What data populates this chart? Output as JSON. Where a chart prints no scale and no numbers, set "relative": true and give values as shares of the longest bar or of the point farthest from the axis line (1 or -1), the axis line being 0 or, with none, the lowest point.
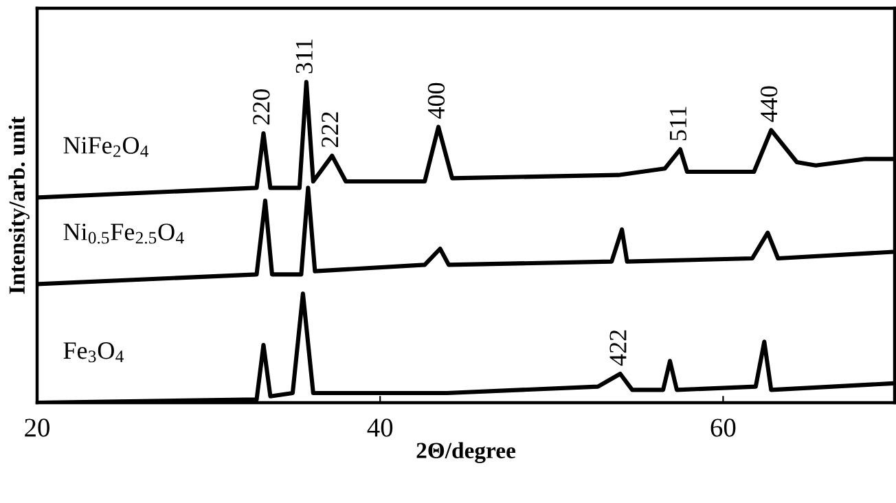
{
  "chart_data": {
    "type": "line",
    "relative": true,
    "xlabel": "2Θ/degree",
    "ylabel": "Intensity/arb. unit",
    "xlim": [
      20,
      70
    ],
    "xticks": [
      20,
      40,
      60
    ],
    "grid": false,
    "legend": false,
    "marker": "none",
    "line_style": "solid",
    "tick_labels": "x",
    "series": [
      {
        "name": "NiFe$_{2}$O$_{4}$",
        "color": "#000000",
        "x": [
          20.1,
          32.8,
          33.2,
          33.6,
          35.3,
          35.7,
          36.1,
          37.2,
          38.0,
          42.6,
          43.4,
          44.2,
          53.9,
          56.6,
          57.5,
          57.9,
          61.8,
          62.8,
          64.3,
          65.4,
          68.3,
          69.8
        ],
        "values": [
          0.64,
          0.67,
          0.84,
          0.67,
          0.67,
          1.0,
          0.69,
          0.77,
          0.69,
          0.69,
          0.86,
          0.7,
          0.71,
          0.73,
          0.79,
          0.72,
          0.72,
          0.85,
          0.75,
          0.74,
          0.76,
          0.76
        ]
      },
      {
        "name": "Ni$_{0.5}$Fe$_{2.5}$O$_{4}$",
        "color": "#000000",
        "x": [
          20.1,
          32.8,
          33.3,
          33.7,
          35.4,
          35.8,
          36.2,
          42.6,
          43.5,
          44.0,
          53.5,
          54.1,
          54.4,
          61.7,
          62.6,
          63.2,
          69.8
        ],
        "values": [
          0.37,
          0.4,
          0.63,
          0.4,
          0.4,
          0.67,
          0.41,
          0.43,
          0.48,
          0.43,
          0.44,
          0.54,
          0.44,
          0.45,
          0.53,
          0.45,
          0.47
        ]
      },
      {
        "name": "Fe$_{3}$O$_{4}$",
        "color": "#000000",
        "x": [
          20.1,
          32.8,
          33.2,
          33.6,
          34.9,
          35.5,
          36.1,
          43.9,
          52.7,
          54.0,
          54.7,
          56.5,
          56.9,
          57.3,
          61.9,
          62.4,
          62.8,
          69.8
        ],
        "values": [
          0.0,
          0.01,
          0.18,
          0.02,
          0.03,
          0.34,
          0.03,
          0.03,
          0.05,
          0.09,
          0.04,
          0.04,
          0.13,
          0.04,
          0.05,
          0.19,
          0.04,
          0.06
        ]
      }
    ],
    "annotations": [
      {
        "text": "220",
        "x": 33.2,
        "y": 0.84
      },
      {
        "text": "311",
        "x": 35.7,
        "y": 1.0
      },
      {
        "text": "222",
        "x": 37.2,
        "y": 0.77
      },
      {
        "text": "400",
        "x": 43.4,
        "y": 0.86
      },
      {
        "text": "511",
        "x": 57.5,
        "y": 0.79
      },
      {
        "text": "440",
        "x": 62.8,
        "y": 0.85
      },
      {
        "text": "422",
        "x": 54.0,
        "y": 0.09
      }
    ]
  }
}
